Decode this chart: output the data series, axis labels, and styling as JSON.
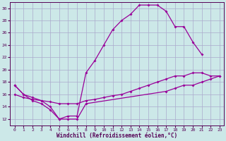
{
  "background_color": "#cce8e8",
  "grid_color": "#aaaacc",
  "line_color": "#990099",
  "xlim": [
    -0.5,
    23.5
  ],
  "ylim": [
    11,
    31
  ],
  "xticks": [
    0,
    1,
    2,
    3,
    4,
    5,
    6,
    7,
    8,
    9,
    10,
    11,
    12,
    13,
    14,
    15,
    16,
    17,
    18,
    19,
    20,
    21,
    22,
    23
  ],
  "yticks": [
    12,
    14,
    16,
    18,
    20,
    22,
    24,
    26,
    28,
    30
  ],
  "xlabel": "Windchill (Refroidissement éolien,°C)",
  "curve1_x": [
    0,
    1,
    2,
    3,
    4,
    5,
    6,
    7,
    8,
    9,
    10,
    11,
    12,
    13,
    14,
    15,
    16,
    17,
    18,
    19,
    20,
    21
  ],
  "curve1_y": [
    17.5,
    16.0,
    15.5,
    15.0,
    14.0,
    12.0,
    12.5,
    12.5,
    19.5,
    21.5,
    24.0,
    26.5,
    28.0,
    29.0,
    30.5,
    30.5,
    30.5,
    29.5,
    27.0,
    27.0,
    24.5,
    22.5
  ],
  "curve2_x": [
    0,
    1,
    2,
    3,
    4,
    5,
    6,
    7,
    8,
    17,
    18,
    19,
    20,
    21,
    22,
    23
  ],
  "curve2_y": [
    17.5,
    16.0,
    15.0,
    14.5,
    13.5,
    12.0,
    12.0,
    12.0,
    14.5,
    16.5,
    17.0,
    17.5,
    17.5,
    18.0,
    18.5,
    19.0
  ],
  "curve3_x": [
    0,
    1,
    2,
    3,
    4,
    5,
    6,
    7,
    8,
    9,
    10,
    11,
    12,
    13,
    14,
    15,
    16,
    17,
    18,
    19,
    20,
    21,
    22,
    23
  ],
  "curve3_y": [
    16.0,
    15.5,
    15.2,
    15.0,
    14.8,
    14.5,
    14.5,
    14.5,
    15.0,
    15.2,
    15.5,
    15.8,
    16.0,
    16.5,
    17.0,
    17.5,
    18.0,
    18.5,
    19.0,
    19.0,
    19.5,
    19.5,
    19.0,
    19.0
  ]
}
